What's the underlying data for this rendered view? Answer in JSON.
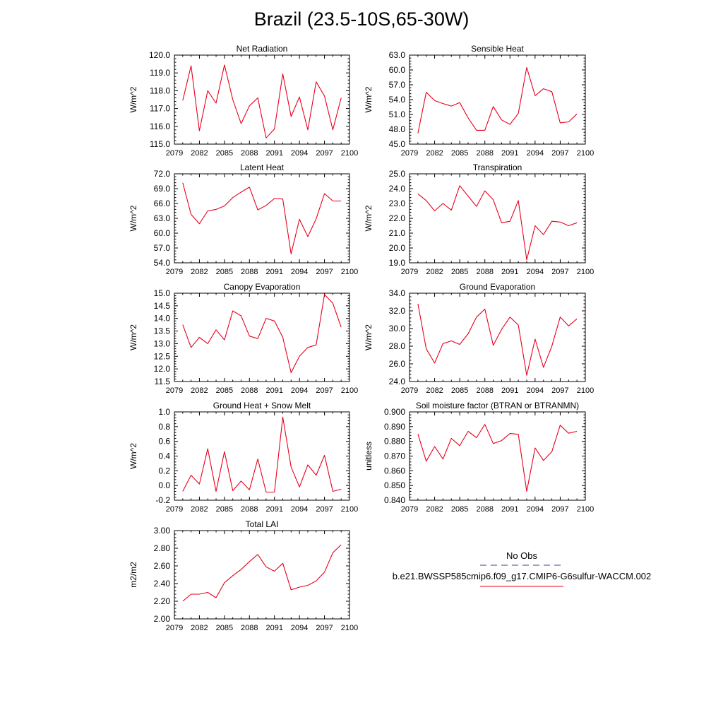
{
  "title": "Brazil (23.5-10S,65-30W)",
  "colors": {
    "series": "#e8001c",
    "obs": "#3e3e8f",
    "axis": "#000000"
  },
  "legend": {
    "obs_label": "No Obs",
    "model_label": "b.e21.BWSSP585cmip6.f09_g17.CMIP6-G6sulfur-WACCM.002"
  },
  "chart_data": [
    {
      "type": "line",
      "title": "Net Radiation",
      "ylabel": "W/m^2",
      "xlim": [
        2079,
        2100
      ],
      "xticks": [
        2079,
        2082,
        2085,
        2088,
        2091,
        2094,
        2097,
        2100
      ],
      "ylim": [
        115.0,
        120.0
      ],
      "yticks": [
        "115.0",
        "116.0",
        "117.0",
        "118.0",
        "119.0",
        "120.0"
      ],
      "x": [
        2080,
        2081,
        2082,
        2083,
        2084,
        2085,
        2086,
        2087,
        2088,
        2089,
        2090,
        2091,
        2092,
        2093,
        2094,
        2095,
        2096,
        2097,
        2098,
        2099
      ],
      "values": [
        117.45,
        119.4,
        115.75,
        118.0,
        117.3,
        119.45,
        117.5,
        116.15,
        117.15,
        117.6,
        115.35,
        115.85,
        118.95,
        116.55,
        117.65,
        115.8,
        118.5,
        117.7,
        115.8,
        117.6
      ]
    },
    {
      "type": "line",
      "title": "Sensible Heat",
      "ylabel": "W/m^2",
      "xlim": [
        2079,
        2100
      ],
      "xticks": [
        2079,
        2082,
        2085,
        2088,
        2091,
        2094,
        2097,
        2100
      ],
      "ylim": [
        45.0,
        63.0
      ],
      "yticks": [
        "45.0",
        "48.0",
        "51.0",
        "54.0",
        "57.0",
        "60.0",
        "63.0"
      ],
      "x": [
        2080,
        2081,
        2082,
        2083,
        2084,
        2085,
        2086,
        2087,
        2088,
        2089,
        2090,
        2091,
        2092,
        2093,
        2094,
        2095,
        2096,
        2097,
        2098,
        2099
      ],
      "values": [
        47.2,
        55.5,
        53.8,
        53.2,
        52.7,
        53.4,
        50.3,
        47.8,
        47.8,
        52.6,
        49.9,
        49.0,
        51.2,
        60.5,
        54.8,
        56.2,
        55.6,
        49.3,
        49.5,
        51.1
      ]
    },
    {
      "type": "line",
      "title": "Latent Heat",
      "ylabel": "W/m^2",
      "xlim": [
        2079,
        2100
      ],
      "xticks": [
        2079,
        2082,
        2085,
        2088,
        2091,
        2094,
        2097,
        2100
      ],
      "ylim": [
        54.0,
        72.0
      ],
      "yticks": [
        "54.0",
        "57.0",
        "60.0",
        "63.0",
        "66.0",
        "69.0",
        "72.0"
      ],
      "x": [
        2080,
        2081,
        2082,
        2083,
        2084,
        2085,
        2086,
        2087,
        2088,
        2089,
        2090,
        2091,
        2092,
        2093,
        2094,
        2095,
        2096,
        2097,
        2098,
        2099
      ],
      "values": [
        70.2,
        63.8,
        61.9,
        64.5,
        64.8,
        65.5,
        67.2,
        68.3,
        69.3,
        64.7,
        65.6,
        67.0,
        66.9,
        55.8,
        62.8,
        59.3,
        62.9,
        68.0,
        66.5,
        66.5
      ]
    },
    {
      "type": "line",
      "title": "Transpiration",
      "ylabel": "W/m^2",
      "xlim": [
        2079,
        2100
      ],
      "xticks": [
        2079,
        2082,
        2085,
        2088,
        2091,
        2094,
        2097,
        2100
      ],
      "ylim": [
        19.0,
        25.0
      ],
      "yticks": [
        "19.0",
        "20.0",
        "21.0",
        "22.0",
        "23.0",
        "24.0",
        "25.0"
      ],
      "x": [
        2080,
        2081,
        2082,
        2083,
        2084,
        2085,
        2086,
        2087,
        2088,
        2089,
        2090,
        2091,
        2092,
        2093,
        2094,
        2095,
        2096,
        2097,
        2098,
        2099
      ],
      "values": [
        23.65,
        23.2,
        22.5,
        23.0,
        22.55,
        24.2,
        23.5,
        22.8,
        23.85,
        23.25,
        21.7,
        21.8,
        23.2,
        19.2,
        21.5,
        20.9,
        21.8,
        21.75,
        21.5,
        21.7
      ]
    },
    {
      "type": "line",
      "title": "Canopy Evaporation",
      "ylabel": "W/m^2",
      "xlim": [
        2079,
        2100
      ],
      "xticks": [
        2079,
        2082,
        2085,
        2088,
        2091,
        2094,
        2097,
        2100
      ],
      "ylim": [
        11.5,
        15.0
      ],
      "yticks": [
        "11.5",
        "12.0",
        "12.5",
        "13.0",
        "13.5",
        "14.0",
        "14.5",
        "15.0"
      ],
      "x": [
        2080,
        2081,
        2082,
        2083,
        2084,
        2085,
        2086,
        2087,
        2088,
        2089,
        2090,
        2091,
        2092,
        2093,
        2094,
        2095,
        2096,
        2097,
        2098,
        2099
      ],
      "values": [
        13.75,
        12.85,
        13.25,
        13.0,
        13.55,
        13.15,
        14.3,
        14.1,
        13.3,
        13.2,
        14.0,
        13.9,
        13.25,
        11.85,
        12.5,
        12.85,
        12.95,
        14.95,
        14.6,
        13.65
      ]
    },
    {
      "type": "line",
      "title": "Ground Evaporation",
      "ylabel": "W/m^2",
      "xlim": [
        2079,
        2100
      ],
      "xticks": [
        2079,
        2082,
        2085,
        2088,
        2091,
        2094,
        2097,
        2100
      ],
      "ylim": [
        24.0,
        34.0
      ],
      "yticks": [
        "24.0",
        "26.0",
        "28.0",
        "30.0",
        "32.0",
        "34.0"
      ],
      "x": [
        2080,
        2081,
        2082,
        2083,
        2084,
        2085,
        2086,
        2087,
        2088,
        2089,
        2090,
        2091,
        2092,
        2093,
        2094,
        2095,
        2096,
        2097,
        2098,
        2099
      ],
      "values": [
        32.8,
        27.7,
        26.1,
        28.3,
        28.6,
        28.2,
        29.4,
        31.3,
        32.2,
        28.1,
        29.9,
        31.3,
        30.4,
        24.7,
        28.8,
        25.6,
        28.0,
        31.3,
        30.3,
        31.1
      ]
    },
    {
      "type": "line",
      "title": "Ground Heat + Snow Melt",
      "ylabel": "W/m^2",
      "xlim": [
        2079,
        2100
      ],
      "xticks": [
        2079,
        2082,
        2085,
        2088,
        2091,
        2094,
        2097,
        2100
      ],
      "ylim": [
        -0.2,
        1.0
      ],
      "yticks": [
        "-0.2",
        "0.0",
        "0.2",
        "0.4",
        "0.6",
        "0.8",
        "1.0"
      ],
      "x": [
        2080,
        2081,
        2082,
        2083,
        2084,
        2085,
        2086,
        2087,
        2088,
        2089,
        2090,
        2091,
        2092,
        2093,
        2094,
        2095,
        2096,
        2097,
        2098,
        2099
      ],
      "values": [
        -0.08,
        0.14,
        0.02,
        0.5,
        -0.08,
        0.46,
        -0.07,
        0.06,
        -0.06,
        0.36,
        -0.09,
        -0.09,
        0.93,
        0.25,
        -0.02,
        0.28,
        0.14,
        0.41,
        -0.08,
        -0.05
      ]
    },
    {
      "type": "line",
      "title": "Soil moisture factor (BTRAN or BTRANMN)",
      "ylabel": "unitless",
      "xlim": [
        2079,
        2100
      ],
      "xticks": [
        2079,
        2082,
        2085,
        2088,
        2091,
        2094,
        2097,
        2100
      ],
      "ylim": [
        0.84,
        0.9
      ],
      "yticks": [
        "0.840",
        "0.850",
        "0.860",
        "0.870",
        "0.880",
        "0.890",
        "0.900"
      ],
      "x": [
        2080,
        2081,
        2082,
        2083,
        2084,
        2085,
        2086,
        2087,
        2088,
        2089,
        2090,
        2091,
        2092,
        2093,
        2094,
        2095,
        2096,
        2097,
        2098,
        2099
      ],
      "values": [
        0.885,
        0.8665,
        0.8765,
        0.868,
        0.882,
        0.877,
        0.8868,
        0.8825,
        0.8915,
        0.8785,
        0.8805,
        0.8853,
        0.8848,
        0.846,
        0.8755,
        0.867,
        0.873,
        0.891,
        0.8855,
        0.8868
      ]
    },
    {
      "type": "line",
      "title": "Total LAI",
      "ylabel": "m2/m2",
      "xlim": [
        2079,
        2100
      ],
      "xticks": [
        2079,
        2082,
        2085,
        2088,
        2091,
        2094,
        2097,
        2100
      ],
      "ylim": [
        2.0,
        3.0
      ],
      "yticks": [
        "2.00",
        "2.20",
        "2.40",
        "2.60",
        "2.80",
        "3.00"
      ],
      "x": [
        2080,
        2081,
        2082,
        2083,
        2084,
        2085,
        2086,
        2087,
        2088,
        2089,
        2090,
        2091,
        2092,
        2093,
        2094,
        2095,
        2096,
        2097,
        2098,
        2099
      ],
      "values": [
        2.2,
        2.28,
        2.28,
        2.3,
        2.24,
        2.41,
        2.49,
        2.56,
        2.65,
        2.73,
        2.59,
        2.54,
        2.63,
        2.33,
        2.36,
        2.38,
        2.43,
        2.53,
        2.75,
        2.84
      ]
    }
  ]
}
